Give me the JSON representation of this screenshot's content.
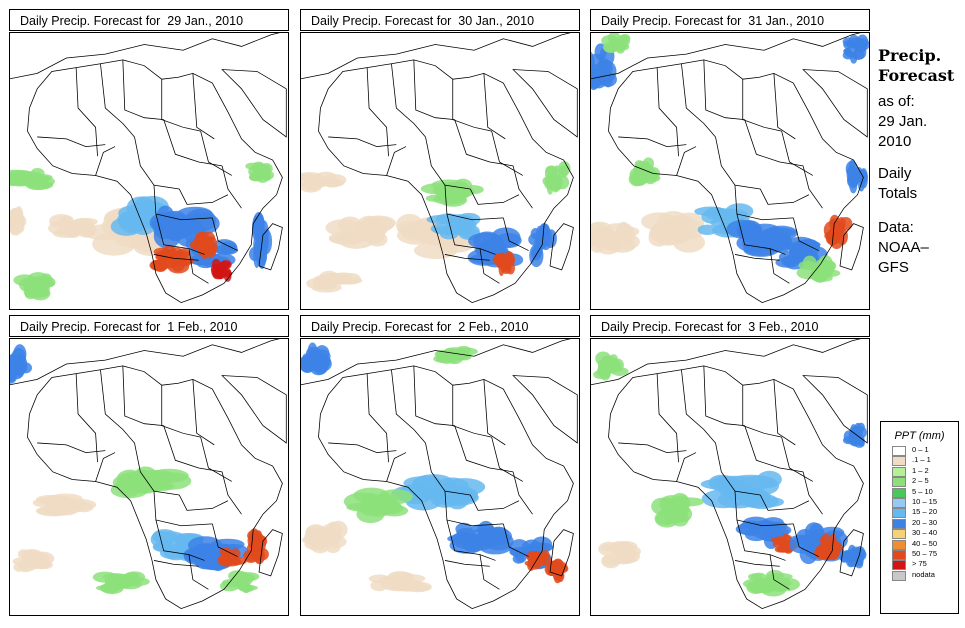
{
  "panels": [
    {
      "title": "Daily Precip. Forecast for  29 Jan., 2010",
      "seed": 1,
      "rain": [
        [
          0.45,
          0.72,
          0.17,
          0.09,
          "#f0dcc4"
        ],
        [
          0.06,
          0.53,
          0.1,
          0.04,
          "#8ce07a"
        ],
        [
          0.22,
          0.7,
          0.1,
          0.05,
          "#f0dcc4"
        ],
        [
          0.48,
          0.66,
          0.11,
          0.08,
          "#66b8f0"
        ],
        [
          0.62,
          0.7,
          0.12,
          0.09,
          "#3c82e6"
        ],
        [
          0.73,
          0.8,
          0.1,
          0.06,
          "#3c82e6"
        ],
        [
          0.58,
          0.82,
          0.08,
          0.05,
          "#e04a1c"
        ],
        [
          0.7,
          0.77,
          0.05,
          0.05,
          "#e04a1c"
        ],
        [
          0.76,
          0.86,
          0.04,
          0.04,
          "#d21414"
        ],
        [
          0.9,
          0.75,
          0.04,
          0.1,
          "#3c82e6"
        ],
        [
          0.9,
          0.5,
          0.05,
          0.04,
          "#8ce07a"
        ],
        [
          0.1,
          0.92,
          0.08,
          0.05,
          "#8ce07a"
        ],
        [
          0.02,
          0.68,
          0.05,
          0.05,
          "#f0dcc4"
        ]
      ]
    },
    {
      "title": "Daily Precip. Forecast for  30 Jan., 2010",
      "seed": 2,
      "rain": [
        [
          0.48,
          0.74,
          0.17,
          0.08,
          "#f0dcc4"
        ],
        [
          0.07,
          0.54,
          0.09,
          0.04,
          "#f0dcc4"
        ],
        [
          0.22,
          0.72,
          0.12,
          0.06,
          "#f0dcc4"
        ],
        [
          0.56,
          0.7,
          0.1,
          0.05,
          "#66b8f0"
        ],
        [
          0.7,
          0.78,
          0.12,
          0.07,
          "#3c82e6"
        ],
        [
          0.73,
          0.83,
          0.04,
          0.05,
          "#e04a1c"
        ],
        [
          0.87,
          0.76,
          0.05,
          0.08,
          "#3c82e6"
        ],
        [
          0.92,
          0.52,
          0.05,
          0.06,
          "#8ce07a"
        ],
        [
          0.55,
          0.58,
          0.12,
          0.05,
          "#8ce07a"
        ],
        [
          0.12,
          0.9,
          0.1,
          0.04,
          "#f0dcc4"
        ]
      ]
    },
    {
      "title": "Daily Precip. Forecast for  31 Jan., 2010",
      "seed": 3,
      "rain": [
        [
          0.03,
          0.12,
          0.06,
          0.09,
          "#3c82e6"
        ],
        [
          0.09,
          0.04,
          0.06,
          0.04,
          "#8ce07a"
        ],
        [
          0.95,
          0.06,
          0.05,
          0.05,
          "#3c82e6"
        ],
        [
          0.08,
          0.75,
          0.1,
          0.07,
          "#f0dcc4"
        ],
        [
          0.3,
          0.72,
          0.12,
          0.07,
          "#f0dcc4"
        ],
        [
          0.48,
          0.68,
          0.12,
          0.06,
          "#66b8f0"
        ],
        [
          0.62,
          0.75,
          0.12,
          0.07,
          "#3c82e6"
        ],
        [
          0.75,
          0.8,
          0.1,
          0.06,
          "#3c82e6"
        ],
        [
          0.89,
          0.72,
          0.05,
          0.06,
          "#e04a1c"
        ],
        [
          0.96,
          0.52,
          0.04,
          0.06,
          "#3c82e6"
        ],
        [
          0.82,
          0.86,
          0.08,
          0.05,
          "#8ce07a"
        ],
        [
          0.2,
          0.5,
          0.06,
          0.05,
          "#8ce07a"
        ]
      ]
    },
    {
      "title": "Daily Precip. Forecast for  1 Feb., 2010",
      "seed": 4,
      "rain": [
        [
          0.03,
          0.1,
          0.05,
          0.08,
          "#3c82e6"
        ],
        [
          0.5,
          0.52,
          0.15,
          0.06,
          "#8ce07a"
        ],
        [
          0.2,
          0.6,
          0.12,
          0.05,
          "#f0dcc4"
        ],
        [
          0.6,
          0.75,
          0.1,
          0.06,
          "#66b8f0"
        ],
        [
          0.74,
          0.78,
          0.12,
          0.06,
          "#3c82e6"
        ],
        [
          0.8,
          0.79,
          0.05,
          0.04,
          "#e04a1c"
        ],
        [
          0.88,
          0.75,
          0.05,
          0.07,
          "#e04a1c"
        ],
        [
          0.82,
          0.88,
          0.07,
          0.04,
          "#8ce07a"
        ],
        [
          0.08,
          0.8,
          0.08,
          0.05,
          "#f0dcc4"
        ],
        [
          0.4,
          0.88,
          0.1,
          0.04,
          "#8ce07a"
        ]
      ]
    },
    {
      "title": "Daily Precip. Forecast for  2 Feb., 2010",
      "seed": 5,
      "rain": [
        [
          0.05,
          0.08,
          0.06,
          0.06,
          "#3c82e6"
        ],
        [
          0.55,
          0.06,
          0.08,
          0.04,
          "#8ce07a"
        ],
        [
          0.5,
          0.55,
          0.16,
          0.07,
          "#66b8f0"
        ],
        [
          0.28,
          0.6,
          0.12,
          0.06,
          "#8ce07a"
        ],
        [
          0.65,
          0.72,
          0.12,
          0.06,
          "#3c82e6"
        ],
        [
          0.82,
          0.78,
          0.08,
          0.06,
          "#3c82e6"
        ],
        [
          0.85,
          0.8,
          0.05,
          0.04,
          "#e04a1c"
        ],
        [
          0.92,
          0.84,
          0.04,
          0.05,
          "#e04a1c"
        ],
        [
          0.1,
          0.72,
          0.09,
          0.06,
          "#f0dcc4"
        ],
        [
          0.35,
          0.88,
          0.12,
          0.04,
          "#f0dcc4"
        ]
      ]
    },
    {
      "title": "Daily Precip. Forecast for  3 Feb., 2010",
      "seed": 6,
      "rain": [
        [
          0.07,
          0.1,
          0.06,
          0.05,
          "#8ce07a"
        ],
        [
          0.95,
          0.35,
          0.04,
          0.05,
          "#3c82e6"
        ],
        [
          0.55,
          0.55,
          0.16,
          0.07,
          "#66b8f0"
        ],
        [
          0.3,
          0.62,
          0.1,
          0.06,
          "#8ce07a"
        ],
        [
          0.62,
          0.7,
          0.1,
          0.06,
          "#3c82e6"
        ],
        [
          0.7,
          0.74,
          0.06,
          0.04,
          "#e04a1c"
        ],
        [
          0.82,
          0.74,
          0.1,
          0.07,
          "#3c82e6"
        ],
        [
          0.85,
          0.76,
          0.05,
          0.05,
          "#e04a1c"
        ],
        [
          0.94,
          0.8,
          0.05,
          0.05,
          "#3c82e6"
        ],
        [
          0.1,
          0.78,
          0.08,
          0.05,
          "#f0dcc4"
        ],
        [
          0.65,
          0.88,
          0.1,
          0.05,
          "#8ce07a"
        ]
      ]
    }
  ],
  "side": {
    "heading_line1": "Precip.",
    "heading_line2": "Forecast",
    "asof_line1": "as of:",
    "asof_line2": "29 Jan.",
    "asof_line3": "2010",
    "totals_line1": "Daily",
    "totals_line2": "Totals",
    "data_line1": "Data:",
    "data_line2": "NOAA–",
    "data_line3": "GFS"
  },
  "legend": {
    "title": "PPT (mm)",
    "items": [
      {
        "label": "0 – 1",
        "color": "#ffffff"
      },
      {
        "label": ".1 – 1",
        "color": "#f0dcc4"
      },
      {
        "label": "1 – 2",
        "color": "#b4f096"
      },
      {
        "label": "2 – 5",
        "color": "#8ce07a"
      },
      {
        "label": "5 – 10",
        "color": "#46c85a"
      },
      {
        "label": "10 – 15",
        "color": "#96c8f5"
      },
      {
        "label": "15 – 20",
        "color": "#66b8f0"
      },
      {
        "label": "20 – 30",
        "color": "#3c82e6"
      },
      {
        "label": "30 – 40",
        "color": "#f5d278"
      },
      {
        "label": "40 – 50",
        "color": "#f08c32"
      },
      {
        "label": "50 – 75",
        "color": "#e04a1c"
      },
      {
        "label": "> 75",
        "color": "#d21414"
      },
      {
        "label": "nodata",
        "color": "#c8c8c8"
      }
    ]
  }
}
